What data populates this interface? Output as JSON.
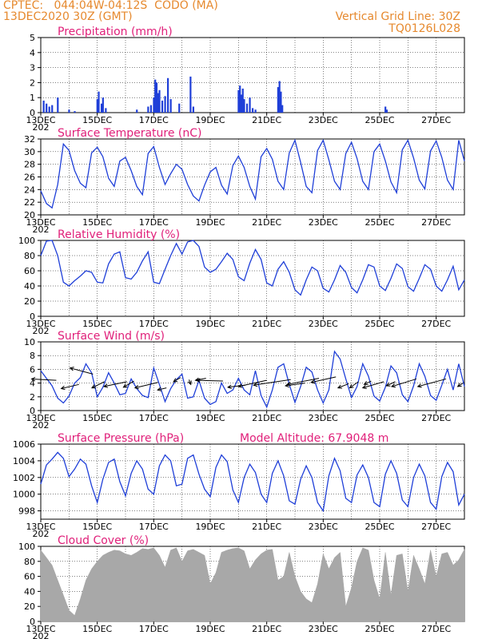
{
  "header": {
    "agency_line": "CPTEC:   044:04W-04:12S  CODO (MA)",
    "date_line": "13DEC2020 30Z (GMT)",
    "grid_line": "Vertical Grid Line: 30Z",
    "code": "TQ0126L028"
  },
  "colors": {
    "header": "#e6892e",
    "title": "#e0207a",
    "line": "#1f3fd8",
    "bar": "#1f3fd8",
    "cloud": "#a8a8a8"
  },
  "x_ticks": [
    "13DEC",
    "15DEC",
    "17DEC",
    "19DEC",
    "21DEC",
    "23DEC",
    "25DEC",
    "27DEC"
  ],
  "year_stub": "202",
  "chart_data": [
    {
      "id": "precip",
      "type": "bar",
      "title": "Precipitation (mm/h)",
      "ylim": [
        0,
        5
      ],
      "yticks": [
        0,
        1,
        2,
        3,
        4,
        5
      ],
      "x": [
        13.1,
        13.2,
        13.3,
        13.4,
        13.6,
        14.0,
        14.2,
        15.0,
        15.05,
        15.15,
        15.2,
        15.3,
        16.4,
        16.8,
        16.9,
        17.0,
        17.05,
        17.1,
        17.15,
        17.2,
        17.3,
        17.4,
        17.5,
        17.6,
        17.9,
        18.3,
        18.4,
        20.0,
        20.05,
        20.1,
        20.15,
        20.2,
        20.3,
        20.4,
        20.5,
        20.6,
        21.4,
        21.45,
        21.5,
        21.55,
        25.2,
        25.25
      ],
      "values": [
        0.8,
        0.6,
        0.4,
        0.5,
        1.0,
        0.2,
        0.1,
        0.9,
        1.4,
        0.6,
        1.0,
        0.3,
        0.2,
        0.4,
        0.5,
        1.0,
        2.2,
        2.0,
        1.3,
        1.5,
        0.8,
        1.1,
        2.3,
        0.9,
        0.6,
        2.4,
        0.4,
        1.5,
        1.8,
        1.2,
        1.6,
        0.9,
        0.6,
        1.0,
        0.3,
        0.2,
        1.7,
        2.1,
        1.4,
        0.5,
        0.4,
        0.2
      ]
    },
    {
      "id": "temp",
      "type": "line",
      "title": "Surface Temperature (nC)",
      "ylim": [
        20,
        32
      ],
      "yticks": [
        20,
        22,
        24,
        26,
        28,
        30,
        32
      ],
      "x": [
        13.0,
        13.2,
        13.4,
        13.6,
        13.8,
        14.0,
        14.2,
        14.4,
        14.6,
        14.8,
        15.0,
        15.2,
        15.4,
        15.6,
        15.8,
        16.0,
        16.2,
        16.4,
        16.6,
        16.8,
        17.0,
        17.2,
        17.4,
        17.6,
        17.8,
        18.0,
        18.2,
        18.4,
        18.6,
        18.8,
        19.0,
        19.2,
        19.4,
        19.6,
        19.8,
        20.0,
        20.2,
        20.4,
        20.6,
        20.8,
        21.0,
        21.2,
        21.4,
        21.6,
        21.8,
        22.0,
        22.2,
        22.4,
        22.6,
        22.8,
        23.0,
        23.2,
        23.4,
        23.6,
        23.8,
        24.0,
        24.2,
        24.4,
        24.6,
        24.8,
        25.0,
        25.2,
        25.4,
        25.6,
        25.8,
        26.0,
        26.2,
        26.4,
        26.6,
        26.8,
        27.0,
        27.2,
        27.4,
        27.6,
        27.8,
        28.0
      ],
      "values": [
        23.8,
        21.8,
        21.1,
        24.8,
        31.2,
        30.2,
        27.0,
        25.0,
        24.3,
        29.8,
        30.7,
        29.2,
        25.8,
        24.5,
        28.5,
        29.1,
        27.0,
        24.5,
        23.2,
        29.7,
        30.8,
        27.5,
        24.8,
        26.5,
        28.0,
        27.2,
        24.8,
        23.0,
        22.2,
        24.7,
        26.8,
        27.5,
        24.7,
        23.3,
        27.8,
        29.3,
        27.5,
        24.5,
        22.5,
        29.2,
        30.5,
        28.8,
        25.3,
        24.0,
        29.8,
        31.8,
        28.3,
        24.5,
        23.5,
        30.2,
        31.8,
        28.7,
        25.3,
        24.0,
        29.7,
        31.5,
        28.9,
        25.3,
        24.0,
        30.0,
        31.2,
        28.5,
        25.2,
        23.5,
        30.3,
        31.8,
        29.0,
        25.5,
        24.1,
        30.1,
        31.7,
        29.1,
        25.5,
        24.0,
        31.8,
        28.5
      ]
    },
    {
      "id": "rh",
      "type": "line",
      "title": "Relative Humidity (%)",
      "ylim": [
        0,
        100
      ],
      "yticks": [
        0,
        20,
        40,
        60,
        80,
        100
      ],
      "x": [
        13.0,
        13.2,
        13.4,
        13.6,
        13.8,
        14.0,
        14.2,
        14.4,
        14.6,
        14.8,
        15.0,
        15.2,
        15.4,
        15.6,
        15.8,
        16.0,
        16.2,
        16.4,
        16.6,
        16.8,
        17.0,
        17.2,
        17.4,
        17.6,
        17.8,
        18.0,
        18.2,
        18.4,
        18.6,
        18.8,
        19.0,
        19.2,
        19.4,
        19.6,
        19.8,
        20.0,
        20.2,
        20.4,
        20.6,
        20.8,
        21.0,
        21.2,
        21.4,
        21.6,
        21.8,
        22.0,
        22.2,
        22.4,
        22.6,
        22.8,
        23.0,
        23.2,
        23.4,
        23.6,
        23.8,
        24.0,
        24.2,
        24.4,
        24.6,
        24.8,
        25.0,
        25.2,
        25.4,
        25.6,
        25.8,
        26.0,
        26.2,
        26.4,
        26.6,
        26.8,
        27.0,
        27.2,
        27.4,
        27.6,
        27.8,
        28.0
      ],
      "values": [
        80,
        99,
        100,
        80,
        45,
        40,
        47,
        53,
        60,
        58,
        45,
        44,
        69,
        82,
        85,
        51,
        49,
        58,
        73,
        85,
        45,
        43,
        62,
        80,
        96,
        82,
        98,
        100,
        92,
        65,
        58,
        62,
        72,
        83,
        75,
        52,
        47,
        70,
        88,
        75,
        44,
        40,
        62,
        72,
        58,
        35,
        28,
        48,
        65,
        60,
        37,
        32,
        48,
        67,
        58,
        38,
        31,
        48,
        68,
        65,
        40,
        34,
        50,
        69,
        63,
        39,
        33,
        50,
        68,
        62,
        40,
        33,
        48,
        66,
        35,
        48
      ]
    },
    {
      "id": "wind",
      "type": "line",
      "title": "Surface Wind (m/s)",
      "ylim": [
        0,
        10
      ],
      "yticks": [
        0,
        2,
        4,
        6,
        8,
        10
      ],
      "x": [
        13.0,
        13.2,
        13.4,
        13.6,
        13.8,
        14.0,
        14.2,
        14.4,
        14.6,
        14.8,
        15.0,
        15.2,
        15.4,
        15.6,
        15.8,
        16.0,
        16.2,
        16.4,
        16.6,
        16.8,
        17.0,
        17.2,
        17.4,
        17.6,
        17.8,
        18.0,
        18.2,
        18.4,
        18.6,
        18.8,
        19.0,
        19.2,
        19.4,
        19.6,
        19.8,
        20.0,
        20.2,
        20.4,
        20.6,
        20.8,
        21.0,
        21.2,
        21.4,
        21.6,
        21.8,
        22.0,
        22.2,
        22.4,
        22.6,
        22.8,
        23.0,
        23.2,
        23.4,
        23.6,
        23.8,
        24.0,
        24.2,
        24.4,
        24.6,
        24.8,
        25.0,
        25.2,
        25.4,
        25.6,
        25.8,
        26.0,
        26.2,
        26.4,
        26.6,
        26.8,
        27.0,
        27.2,
        27.4,
        27.6,
        27.8,
        28.0
      ],
      "values": [
        5.8,
        4.7,
        3.6,
        1.8,
        1.1,
        2.1,
        4.0,
        4.8,
        6.8,
        5.5,
        2.0,
        3.4,
        5.5,
        4.0,
        2.3,
        2.5,
        4.6,
        3.2,
        2.2,
        1.9,
        6.2,
        3.8,
        1.3,
        3.2,
        4.5,
        5.3,
        1.8,
        2.0,
        4.4,
        1.8,
        0.9,
        1.3,
        4.0,
        2.5,
        3.0,
        4.7,
        3.0,
        2.3,
        5.8,
        2.2,
        0.5,
        3.0,
        6.3,
        6.8,
        3.8,
        1.2,
        3.5,
        6.3,
        5.6,
        3.0,
        1.1,
        3.0,
        8.6,
        7.5,
        4.6,
        1.9,
        3.5,
        6.8,
        5.0,
        2.1,
        1.4,
        3.4,
        6.5,
        5.5,
        2.3,
        1.3,
        3.6,
        6.8,
        5.0,
        2.2,
        1.5,
        3.7,
        6.0,
        3.0,
        6.8,
        3.5
      ],
      "vectors": [
        {
          "x": 13.55,
          "y": 4.4,
          "u": -1.4,
          "v": 0.2
        },
        {
          "x": 14.35,
          "y": 3.8,
          "u": -1.0,
          "v": -0.6
        },
        {
          "x": 14.85,
          "y": 5.3,
          "u": -1.3,
          "v": 0.9
        },
        {
          "x": 15.25,
          "y": 4.2,
          "u": -0.7,
          "v": -0.9
        },
        {
          "x": 16.05,
          "y": 4.2,
          "u": -1.3,
          "v": -0.7
        },
        {
          "x": 16.3,
          "y": 4.3,
          "u": -0.6,
          "v": -0.9
        },
        {
          "x": 17.15,
          "y": 4.1,
          "u": -1.3,
          "v": -0.8
        },
        {
          "x": 17.45,
          "y": 3.3,
          "u": -0.5,
          "v": -0.3
        },
        {
          "x": 17.95,
          "y": 4.8,
          "u": -0.4,
          "v": -0.6
        },
        {
          "x": 18.25,
          "y": 4.5,
          "u": 0.1,
          "v": -0.7
        },
        {
          "x": 18.85,
          "y": 4.7,
          "u": -0.6,
          "v": -0.3
        },
        {
          "x": 19.45,
          "y": 4.3,
          "u": -1.5,
          "v": 0.1
        },
        {
          "x": 20.25,
          "y": 3.7,
          "u": -1.0,
          "v": -0.3
        },
        {
          "x": 21.0,
          "y": 4.4,
          "u": -1.6,
          "v": -0.9
        },
        {
          "x": 21.85,
          "y": 4.5,
          "u": -2.1,
          "v": -0.8
        },
        {
          "x": 22.35,
          "y": 4.0,
          "u": -1.1,
          "v": -0.4
        },
        {
          "x": 22.85,
          "y": 4.7,
          "u": -1.8,
          "v": -0.9
        },
        {
          "x": 23.45,
          "y": 4.9,
          "u": -1.4,
          "v": -0.8
        },
        {
          "x": 23.9,
          "y": 3.9,
          "u": -0.6,
          "v": -0.6
        },
        {
          "x": 24.25,
          "y": 4.2,
          "u": -0.5,
          "v": -0.9
        },
        {
          "x": 24.7,
          "y": 4.3,
          "u": -0.4,
          "v": -0.5
        },
        {
          "x": 25.15,
          "y": 4.2,
          "u": -1.2,
          "v": -0.9
        },
        {
          "x": 25.55,
          "y": 4.2,
          "u": -0.5,
          "v": -0.6
        },
        {
          "x": 26.3,
          "y": 4.6,
          "u": -1.4,
          "v": -1.1
        },
        {
          "x": 27.35,
          "y": 4.6,
          "u": -1.6,
          "v": -1.1
        },
        {
          "x": 27.95,
          "y": 4.0,
          "u": -0.3,
          "v": -0.5
        }
      ]
    },
    {
      "id": "pressure",
      "type": "line",
      "title": "Surface Pressure (hPa)",
      "annotation": "Model Altitude: 67.9048 m",
      "ylim": [
        997,
        1006
      ],
      "yticks": [
        998,
        1000,
        1002,
        1004,
        1006
      ],
      "x": [
        13.0,
        13.2,
        13.4,
        13.6,
        13.8,
        14.0,
        14.2,
        14.4,
        14.6,
        14.8,
        15.0,
        15.2,
        15.4,
        15.6,
        15.8,
        16.0,
        16.2,
        16.4,
        16.6,
        16.8,
        17.0,
        17.2,
        17.4,
        17.6,
        17.8,
        18.0,
        18.2,
        18.4,
        18.6,
        18.8,
        19.0,
        19.2,
        19.4,
        19.6,
        19.8,
        20.0,
        20.2,
        20.4,
        20.6,
        20.8,
        21.0,
        21.2,
        21.4,
        21.6,
        21.8,
        22.0,
        22.2,
        22.4,
        22.6,
        22.8,
        23.0,
        23.2,
        23.4,
        23.6,
        23.8,
        24.0,
        24.2,
        24.4,
        24.6,
        24.8,
        25.0,
        25.2,
        25.4,
        25.6,
        25.8,
        26.0,
        26.2,
        26.4,
        26.6,
        26.8,
        27.0,
        27.2,
        27.4,
        27.6,
        27.8,
        28.0
      ],
      "values": [
        1001.2,
        1003.5,
        1004.2,
        1005.0,
        1004.3,
        1002.1,
        1003.0,
        1004.2,
        1003.6,
        1001.0,
        999.0,
        1001.8,
        1003.8,
        1004.2,
        1001.5,
        999.8,
        1002.5,
        1004.0,
        1003.0,
        1000.6,
        1000.0,
        1003.4,
        1004.7,
        1004.0,
        1001.0,
        1001.2,
        1004.3,
        1004.7,
        1002.4,
        1000.6,
        999.7,
        1003.2,
        1004.7,
        1003.9,
        1000.5,
        999.0,
        1002.0,
        1003.6,
        1002.6,
        1000.0,
        999.0,
        1002.5,
        1004.0,
        1002.2,
        999.2,
        998.8,
        1001.8,
        1003.4,
        1002.0,
        999.0,
        998.0,
        1002.2,
        1004.3,
        1002.8,
        999.5,
        999.0,
        1002.3,
        1003.5,
        1002.0,
        999.0,
        998.5,
        1002.4,
        1004.0,
        1002.5,
        999.3,
        998.5,
        1002.0,
        1003.6,
        1002.2,
        999.0,
        998.2,
        1002.1,
        1003.8,
        1002.7,
        998.7,
        1000.0
      ]
    },
    {
      "id": "cloud",
      "type": "area",
      "title": "Cloud Cover (%)",
      "ylim": [
        0,
        100
      ],
      "yticks": [
        0,
        20,
        40,
        60,
        80,
        100
      ],
      "x": [
        13.0,
        13.2,
        13.4,
        13.6,
        13.8,
        14.0,
        14.2,
        14.4,
        14.6,
        14.8,
        15.0,
        15.2,
        15.4,
        15.6,
        15.8,
        16.0,
        16.2,
        16.4,
        16.6,
        16.8,
        17.0,
        17.2,
        17.4,
        17.6,
        17.8,
        18.0,
        18.2,
        18.4,
        18.6,
        18.8,
        19.0,
        19.2,
        19.4,
        19.6,
        19.8,
        20.0,
        20.2,
        20.4,
        20.6,
        20.8,
        21.0,
        21.2,
        21.4,
        21.6,
        21.8,
        22.0,
        22.2,
        22.4,
        22.6,
        22.8,
        23.0,
        23.2,
        23.4,
        23.6,
        23.8,
        24.0,
        24.2,
        24.4,
        24.6,
        24.8,
        25.0,
        25.2,
        25.4,
        25.6,
        25.8,
        26.0,
        26.2,
        26.4,
        26.6,
        26.8,
        27.0,
        27.2,
        27.4,
        27.6,
        27.8,
        28.0
      ],
      "values": [
        95,
        85,
        75,
        55,
        35,
        15,
        8,
        30,
        55,
        70,
        80,
        88,
        92,
        95,
        94,
        90,
        88,
        92,
        97,
        96,
        98,
        88,
        72,
        95,
        98,
        80,
        94,
        96,
        92,
        88,
        50,
        65,
        92,
        95,
        97,
        98,
        94,
        70,
        82,
        90,
        95,
        96,
        55,
        60,
        92,
        60,
        40,
        30,
        25,
        50,
        90,
        70,
        85,
        92,
        20,
        45,
        80,
        98,
        95,
        55,
        30,
        92,
        35,
        88,
        90,
        40,
        88,
        70,
        50,
        95,
        60,
        90,
        92,
        75,
        82,
        96
      ]
    }
  ]
}
